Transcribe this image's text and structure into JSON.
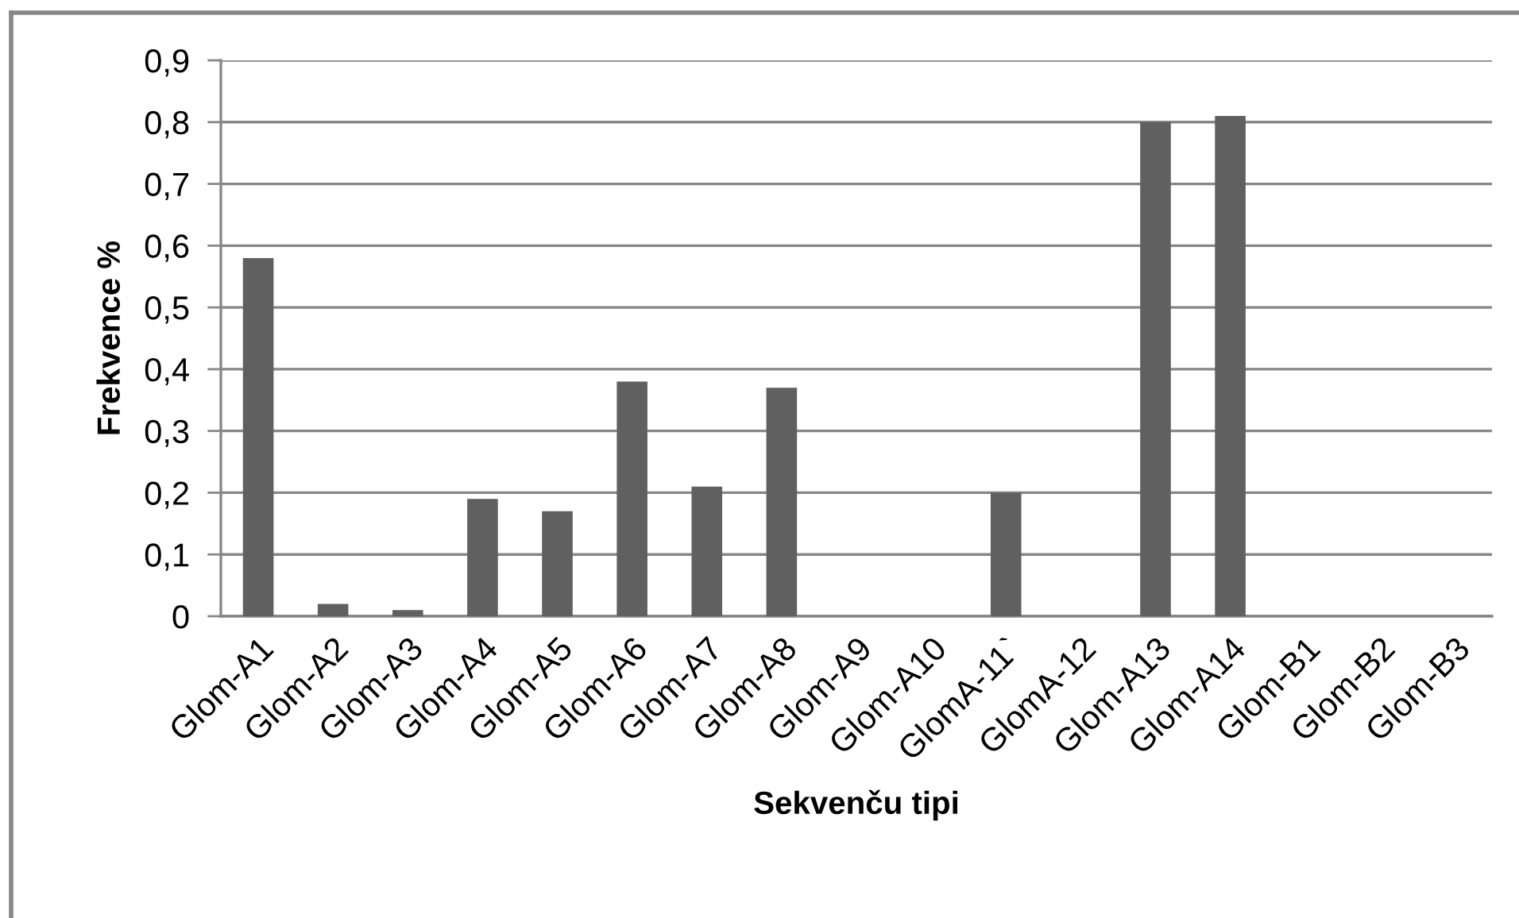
{
  "chart_data": {
    "type": "bar",
    "xlabel": "Sekvenču tipi",
    "ylabel": "Frekvence %",
    "categories": [
      "Glom-A1",
      "Glom-A2",
      "Glom-A3",
      "Glom-A4",
      "Glom-A5",
      "Glom-A6",
      "Glom-A7",
      "Glom-A8",
      "Glom-A9",
      "Glom-A10",
      "GlomA-11`",
      "GlomA-12",
      "Glom-A13",
      "Glom-A14",
      "Glom-B1",
      "Glom-B2",
      "Glom-B3"
    ],
    "values": [
      0.58,
      0.02,
      0.01,
      0.19,
      0.17,
      0.38,
      0.21,
      0.37,
      0,
      0,
      0.2,
      0,
      0.8,
      0.81,
      0,
      0,
      0
    ],
    "color": "#606060",
    "ylim": [
      0,
      0.9
    ],
    "yticks": [
      0,
      {
        "value": 0.1,
        "label": "0,1"
      },
      {
        "value": 0.2,
        "label": "0,2"
      },
      {
        "value": 0.3,
        "label": "0,3"
      },
      {
        "value": 0.4,
        "label": "0,4"
      },
      {
        "value": 0.5,
        "label": "0,5"
      },
      {
        "value": 0.6,
        "label": "0,6"
      },
      {
        "value": 0.7,
        "label": "0,7"
      },
      {
        "value": 0.8,
        "label": "0,8"
      },
      {
        "value": 0.9,
        "label": "0,9"
      }
    ],
    "grid": "y",
    "legend": false
  }
}
